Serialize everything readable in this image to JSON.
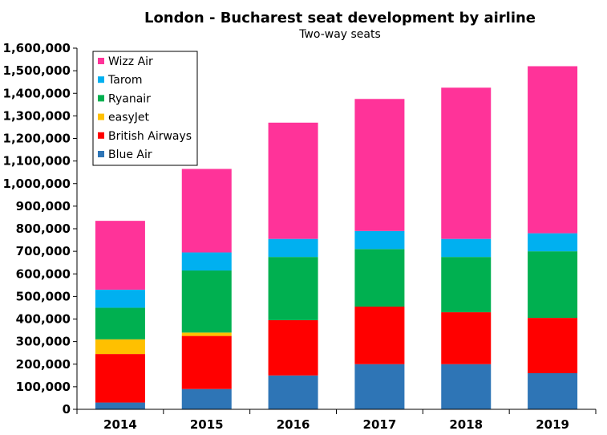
{
  "chart_data": {
    "type": "bar",
    "stacked": true,
    "title": "London - Bucharest seat development by airline",
    "subtitle": "Two-way seats",
    "categories": [
      "2014",
      "2015",
      "2016",
      "2017",
      "2018",
      "2019"
    ],
    "ylim": [
      0,
      1600000
    ],
    "yticks": [
      "0",
      "100,000",
      "200,000",
      "300,000",
      "400,000",
      "500,000",
      "600,000",
      "700,000",
      "800,000",
      "900,000",
      "1,000,000",
      "1,100,000",
      "1,200,000",
      "1,300,000",
      "1,400,000",
      "1,500,000",
      "1,600,000"
    ],
    "legend_position": "top-left",
    "grid": false,
    "series": [
      {
        "name": "Blue Air",
        "color": "#2e75b6",
        "values": [
          30000,
          90000,
          150000,
          200000,
          200000,
          160000
        ]
      },
      {
        "name": "British Airways",
        "color": "#ff0000",
        "values": [
          215000,
          235000,
          245000,
          255000,
          230000,
          245000
        ]
      },
      {
        "name": "easyJet",
        "color": "#ffc000",
        "values": [
          65000,
          15000,
          0,
          0,
          0,
          0
        ]
      },
      {
        "name": "Ryanair",
        "color": "#00b050",
        "values": [
          140000,
          275000,
          280000,
          255000,
          245000,
          295000
        ]
      },
      {
        "name": "Tarom",
        "color": "#00b0f0",
        "values": [
          80000,
          80000,
          80000,
          80000,
          80000,
          80000
        ]
      },
      {
        "name": "Wizz Air",
        "color": "#ff3399",
        "values": [
          305000,
          370000,
          515000,
          585000,
          670000,
          740000
        ]
      }
    ]
  }
}
